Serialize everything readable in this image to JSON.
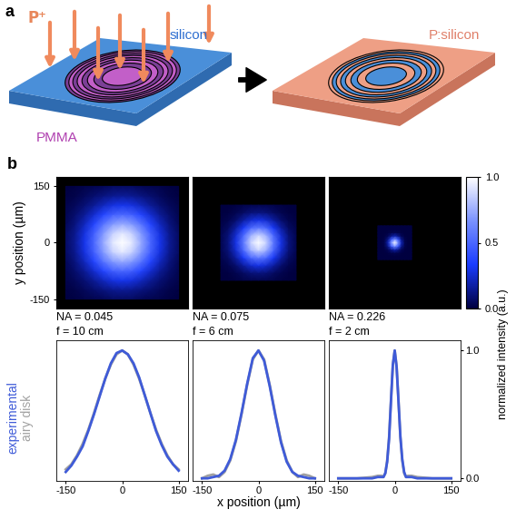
{
  "panel_a": {
    "label": "a",
    "ion": "P⁺",
    "mask": "PMMA",
    "substrate": "silicon",
    "result": "P:silicon"
  },
  "panel_b": {
    "label": "b",
    "intensity_label": "normalized intensity (a.u.)"
  },
  "chart_data": [
    {
      "type": "heatmap",
      "xlim": [
        -175,
        175
      ],
      "ylim": [
        -175,
        175
      ],
      "yticks": [
        -150,
        0,
        150
      ],
      "y_label": "y position (µm)",
      "tick_labels": "y",
      "color_range": [
        0,
        1
      ],
      "annotations": [
        "NA = 0.045",
        "f = 10 cm"
      ],
      "x": [
        -150,
        -125,
        -100,
        -75,
        -50,
        -25,
        0,
        25,
        50,
        75,
        100,
        125,
        150
      ],
      "y": [
        -150,
        -125,
        -100,
        -75,
        -50,
        -25,
        0,
        25,
        50,
        75,
        100,
        125,
        150
      ],
      "cells": [
        [
          0.0,
          0.01,
          0.02,
          0.03,
          0.04,
          0.06,
          0.06,
          0.06,
          0.04,
          0.03,
          0.02,
          0.01,
          0.0
        ],
        [
          0.01,
          0.02,
          0.05,
          0.08,
          0.11,
          0.14,
          0.15,
          0.14,
          0.11,
          0.08,
          0.05,
          0.02,
          0.01
        ],
        [
          0.02,
          0.05,
          0.09,
          0.15,
          0.22,
          0.28,
          0.3,
          0.28,
          0.22,
          0.15,
          0.09,
          0.05,
          0.02
        ],
        [
          0.03,
          0.08,
          0.15,
          0.25,
          0.37,
          0.47,
          0.5,
          0.47,
          0.37,
          0.25,
          0.15,
          0.08,
          0.03
        ],
        [
          0.04,
          0.11,
          0.22,
          0.37,
          0.55,
          0.69,
          0.74,
          0.69,
          0.55,
          0.37,
          0.22,
          0.11,
          0.04
        ],
        [
          0.06,
          0.14,
          0.28,
          0.47,
          0.69,
          0.86,
          0.93,
          0.86,
          0.69,
          0.47,
          0.28,
          0.14,
          0.06
        ],
        [
          0.06,
          0.15,
          0.3,
          0.5,
          0.74,
          0.93,
          1.0,
          0.93,
          0.74,
          0.5,
          0.3,
          0.15,
          0.06
        ],
        [
          0.06,
          0.14,
          0.28,
          0.47,
          0.69,
          0.86,
          0.93,
          0.86,
          0.69,
          0.47,
          0.28,
          0.14,
          0.06
        ],
        [
          0.04,
          0.11,
          0.22,
          0.37,
          0.55,
          0.69,
          0.74,
          0.69,
          0.55,
          0.37,
          0.22,
          0.11,
          0.04
        ],
        [
          0.03,
          0.08,
          0.15,
          0.25,
          0.37,
          0.47,
          0.5,
          0.47,
          0.37,
          0.25,
          0.15,
          0.08,
          0.03
        ],
        [
          0.02,
          0.05,
          0.09,
          0.15,
          0.22,
          0.28,
          0.3,
          0.28,
          0.22,
          0.15,
          0.09,
          0.05,
          0.02
        ],
        [
          0.01,
          0.02,
          0.05,
          0.08,
          0.11,
          0.14,
          0.15,
          0.14,
          0.11,
          0.08,
          0.05,
          0.02,
          0.01
        ],
        [
          0.0,
          0.01,
          0.02,
          0.03,
          0.04,
          0.06,
          0.06,
          0.06,
          0.04,
          0.03,
          0.02,
          0.01,
          0.0
        ]
      ]
    },
    {
      "type": "heatmap",
      "xlim": [
        -175,
        175
      ],
      "ylim": [
        -175,
        175
      ],
      "tick_labels": false,
      "color_range": [
        0,
        1
      ],
      "annotations": [
        "NA = 0.075",
        "f = 6 cm"
      ],
      "x": [
        -100,
        -80,
        -60,
        -40,
        -20,
        0,
        20,
        40,
        60,
        80,
        100
      ],
      "y": [
        -100,
        -80,
        -60,
        -40,
        -20,
        0,
        20,
        40,
        60,
        80,
        100
      ],
      "cells": [
        [
          0.0,
          0.0,
          0.01,
          0.02,
          0.03,
          0.03,
          0.03,
          0.02,
          0.01,
          0.0,
          0.0
        ],
        [
          0.0,
          0.01,
          0.03,
          0.06,
          0.1,
          0.11,
          0.1,
          0.06,
          0.03,
          0.01,
          0.0
        ],
        [
          0.01,
          0.03,
          0.08,
          0.17,
          0.25,
          0.29,
          0.25,
          0.17,
          0.08,
          0.03,
          0.01
        ],
        [
          0.02,
          0.06,
          0.17,
          0.32,
          0.5,
          0.57,
          0.5,
          0.32,
          0.17,
          0.06,
          0.02
        ],
        [
          0.03,
          0.1,
          0.25,
          0.5,
          0.76,
          0.87,
          0.76,
          0.5,
          0.25,
          0.1,
          0.03
        ],
        [
          0.03,
          0.11,
          0.29,
          0.57,
          0.87,
          1.0,
          0.87,
          0.57,
          0.29,
          0.11,
          0.03
        ],
        [
          0.03,
          0.1,
          0.25,
          0.5,
          0.76,
          0.87,
          0.76,
          0.5,
          0.25,
          0.1,
          0.03
        ],
        [
          0.02,
          0.06,
          0.17,
          0.32,
          0.5,
          0.57,
          0.5,
          0.32,
          0.17,
          0.06,
          0.02
        ],
        [
          0.01,
          0.03,
          0.08,
          0.17,
          0.25,
          0.29,
          0.25,
          0.17,
          0.08,
          0.03,
          0.01
        ],
        [
          0.0,
          0.01,
          0.03,
          0.06,
          0.1,
          0.11,
          0.1,
          0.06,
          0.03,
          0.01,
          0.0
        ],
        [
          0.0,
          0.0,
          0.01,
          0.02,
          0.03,
          0.03,
          0.03,
          0.02,
          0.01,
          0.0,
          0.0
        ]
      ]
    },
    {
      "type": "heatmap",
      "xlim": [
        -175,
        175
      ],
      "ylim": [
        -175,
        175
      ],
      "tick_labels": false,
      "color_range": [
        0,
        1
      ],
      "colorbar_ticks": [
        {
          "value": 0,
          "label": "0.0"
        },
        {
          "value": 0.5,
          "label": "0.5"
        },
        {
          "value": 1,
          "label": "1.0"
        }
      ],
      "annotations": [
        "NA = 0.226",
        "f = 2 cm"
      ],
      "x": [
        -45,
        -36,
        -27,
        -18,
        -9,
        0,
        9,
        18,
        27,
        36,
        45
      ],
      "y": [
        -45,
        -36,
        -27,
        -18,
        -9,
        0,
        9,
        18,
        27,
        36,
        45
      ],
      "cells": [
        [
          0,
          0,
          0,
          0,
          0,
          0,
          0,
          0,
          0,
          0,
          0
        ],
        [
          0,
          0,
          0,
          0,
          0,
          0,
          0,
          0,
          0,
          0,
          0
        ],
        [
          0,
          0,
          0.0,
          0.01,
          0.02,
          0.03,
          0.02,
          0.01,
          0.0,
          0,
          0
        ],
        [
          0,
          0,
          0.01,
          0.04,
          0.13,
          0.2,
          0.13,
          0.04,
          0.01,
          0,
          0
        ],
        [
          0,
          0,
          0.02,
          0.13,
          0.45,
          0.67,
          0.45,
          0.13,
          0.02,
          0,
          0
        ],
        [
          0,
          0,
          0.03,
          0.2,
          0.67,
          1.0,
          0.67,
          0.2,
          0.03,
          0,
          0
        ],
        [
          0,
          0,
          0.02,
          0.13,
          0.45,
          0.67,
          0.45,
          0.13,
          0.02,
          0,
          0
        ],
        [
          0,
          0,
          0.01,
          0.04,
          0.13,
          0.2,
          0.13,
          0.04,
          0.01,
          0,
          0
        ],
        [
          0,
          0,
          0.0,
          0.01,
          0.02,
          0.03,
          0.02,
          0.01,
          0.0,
          0,
          0
        ],
        [
          0,
          0,
          0,
          0,
          0,
          0,
          0,
          0,
          0,
          0,
          0
        ],
        [
          0,
          0,
          0,
          0,
          0,
          0,
          0,
          0,
          0,
          0,
          0
        ]
      ]
    },
    {
      "type": "line",
      "xlim": [
        -175,
        175
      ],
      "ylim": [
        -0.02,
        1.08
      ],
      "xticks": [
        -150,
        0,
        150
      ],
      "tick_labels": "x",
      "x": [
        -150,
        -135,
        -120,
        -105,
        -90,
        -75,
        -60,
        -45,
        -30,
        -15,
        0,
        15,
        30,
        45,
        60,
        75,
        90,
        105,
        120,
        135,
        150
      ],
      "series": [
        {
          "name": "airy disk",
          "color": "#a0a0a0",
          "values": [
            0.07,
            0.11,
            0.18,
            0.27,
            0.38,
            0.51,
            0.65,
            0.78,
            0.89,
            0.97,
            1.0,
            0.97,
            0.89,
            0.78,
            0.65,
            0.51,
            0.38,
            0.27,
            0.18,
            0.11,
            0.07
          ]
        },
        {
          "name": "experimental",
          "color": "#3f5bd8",
          "values": [
            0.05,
            0.1,
            0.17,
            0.25,
            0.37,
            0.5,
            0.64,
            0.78,
            0.9,
            0.98,
            1.0,
            0.97,
            0.9,
            0.79,
            0.65,
            0.51,
            0.37,
            0.26,
            0.17,
            0.11,
            0.06
          ]
        }
      ]
    },
    {
      "type": "line",
      "xlim": [
        -175,
        175
      ],
      "ylim": [
        -0.02,
        1.08
      ],
      "xticks": [
        -150,
        0,
        150
      ],
      "tick_labels": "x",
      "x_label": "x position (µm)",
      "x": [
        -150,
        -135,
        -120,
        -105,
        -90,
        -75,
        -60,
        -45,
        -30,
        -15,
        0,
        15,
        30,
        45,
        60,
        75,
        90,
        105,
        120,
        135,
        150
      ],
      "series": [
        {
          "color": "#a0a0a0",
          "values": [
            0.0,
            0.02,
            0.03,
            0.01,
            0.05,
            0.14,
            0.29,
            0.5,
            0.73,
            0.93,
            1.0,
            0.93,
            0.73,
            0.5,
            0.29,
            0.14,
            0.05,
            0.01,
            0.03,
            0.02,
            0.0
          ]
        },
        {
          "color": "#3f5bd8",
          "values": [
            0.0,
            0.0,
            0.01,
            0.02,
            0.06,
            0.15,
            0.3,
            0.51,
            0.74,
            0.94,
            1.0,
            0.92,
            0.72,
            0.49,
            0.28,
            0.13,
            0.05,
            0.02,
            0.01,
            0.0,
            0.0
          ]
        }
      ]
    },
    {
      "type": "line",
      "xlim": [
        -175,
        175
      ],
      "ylim": [
        -0.02,
        1.08
      ],
      "xticks": [
        -150,
        0,
        150
      ],
      "yticks": [
        {
          "value": 0,
          "label": "0.0"
        },
        {
          "value": 1,
          "label": "1.0"
        }
      ],
      "x": [
        -150,
        -100,
        -60,
        -45,
        -35,
        -30,
        -25,
        -20,
        -15,
        -10,
        -5,
        0,
        5,
        10,
        15,
        20,
        25,
        30,
        35,
        45,
        60,
        100,
        150
      ],
      "series": [
        {
          "color": "#a0a0a0",
          "values": [
            0,
            0,
            0.01,
            0.02,
            0.02,
            0.01,
            0.04,
            0.14,
            0.32,
            0.61,
            0.88,
            1.0,
            0.88,
            0.61,
            0.32,
            0.14,
            0.04,
            0.01,
            0.02,
            0.02,
            0.01,
            0,
            0
          ]
        },
        {
          "color": "#3f5bd8",
          "values": [
            0,
            0,
            0,
            0.01,
            0.01,
            0.01,
            0.04,
            0.13,
            0.31,
            0.6,
            0.89,
            1.0,
            0.87,
            0.6,
            0.33,
            0.15,
            0.05,
            0.01,
            0.01,
            0.01,
            0,
            0,
            0
          ]
        }
      ]
    }
  ]
}
